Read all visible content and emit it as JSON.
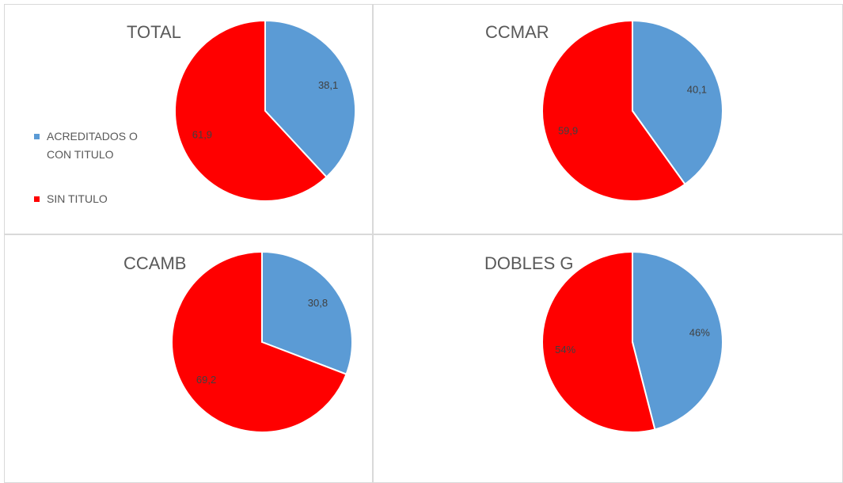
{
  "chart_data": [
    {
      "type": "pie",
      "title": "TOTAL",
      "categories": [
        "ACREDITADOS O CON TITULO",
        "SIN TITULO"
      ],
      "values": [
        38.1,
        61.9
      ],
      "value_labels": [
        "38,1",
        "61,9"
      ],
      "colors": [
        "#5b9bd5",
        "#ff0000"
      ],
      "legend": "left"
    },
    {
      "type": "pie",
      "title": "CCMAR",
      "values": [
        40.1,
        59.9
      ],
      "value_labels": [
        "40,1",
        "59,9"
      ],
      "colors": [
        "#5b9bd5",
        "#ff0000"
      ]
    },
    {
      "type": "pie",
      "title": "CCAMB",
      "values": [
        30.8,
        69.2
      ],
      "value_labels": [
        "30,8",
        "69,2"
      ],
      "colors": [
        "#5b9bd5",
        "#ff0000"
      ]
    },
    {
      "type": "pie",
      "title": "DOBLES G",
      "values": [
        46,
        54
      ],
      "value_labels": [
        "46%",
        "54%"
      ],
      "colors": [
        "#5b9bd5",
        "#ff0000"
      ]
    }
  ]
}
